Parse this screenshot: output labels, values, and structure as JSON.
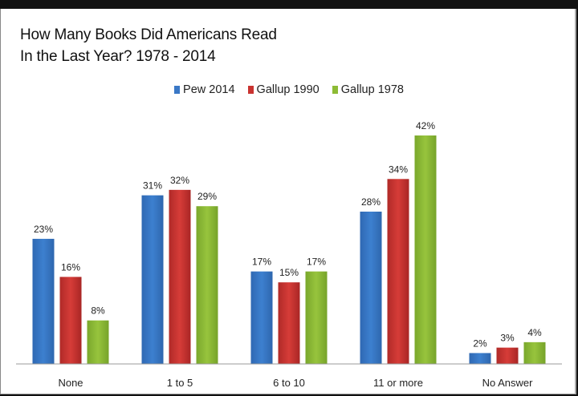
{
  "chart_data": {
    "type": "bar",
    "title_lines": [
      "How Many Books Did Americans Read",
      "In the Last Year? 1978 - 2014"
    ],
    "categories": [
      "None",
      "1 to 5",
      "6 to 10",
      "11 or more",
      "No Answer"
    ],
    "series": [
      {
        "name": "Pew 2014",
        "color": "#3a78c6",
        "values": [
          23,
          31,
          17,
          28,
          2
        ],
        "labels": [
          "23%",
          "31%",
          "17%",
          "28%",
          "2%"
        ]
      },
      {
        "name": "Gallup 1990",
        "color": "#c93330",
        "values": [
          16,
          32,
          15,
          34,
          3
        ],
        "labels": [
          "16%",
          "32%",
          "15%",
          "34%",
          "3%"
        ]
      },
      {
        "name": "Gallup 1978",
        "color": "#8dbb35",
        "values": [
          8,
          29,
          17,
          42,
          4
        ],
        "labels": [
          "8%",
          "29%",
          "17%",
          "42%",
          "4%"
        ]
      }
    ],
    "xlabel": "",
    "ylabel": "",
    "ylim": [
      0,
      42
    ],
    "grid": false,
    "legend_position": "top-center",
    "value_unit": "%"
  }
}
